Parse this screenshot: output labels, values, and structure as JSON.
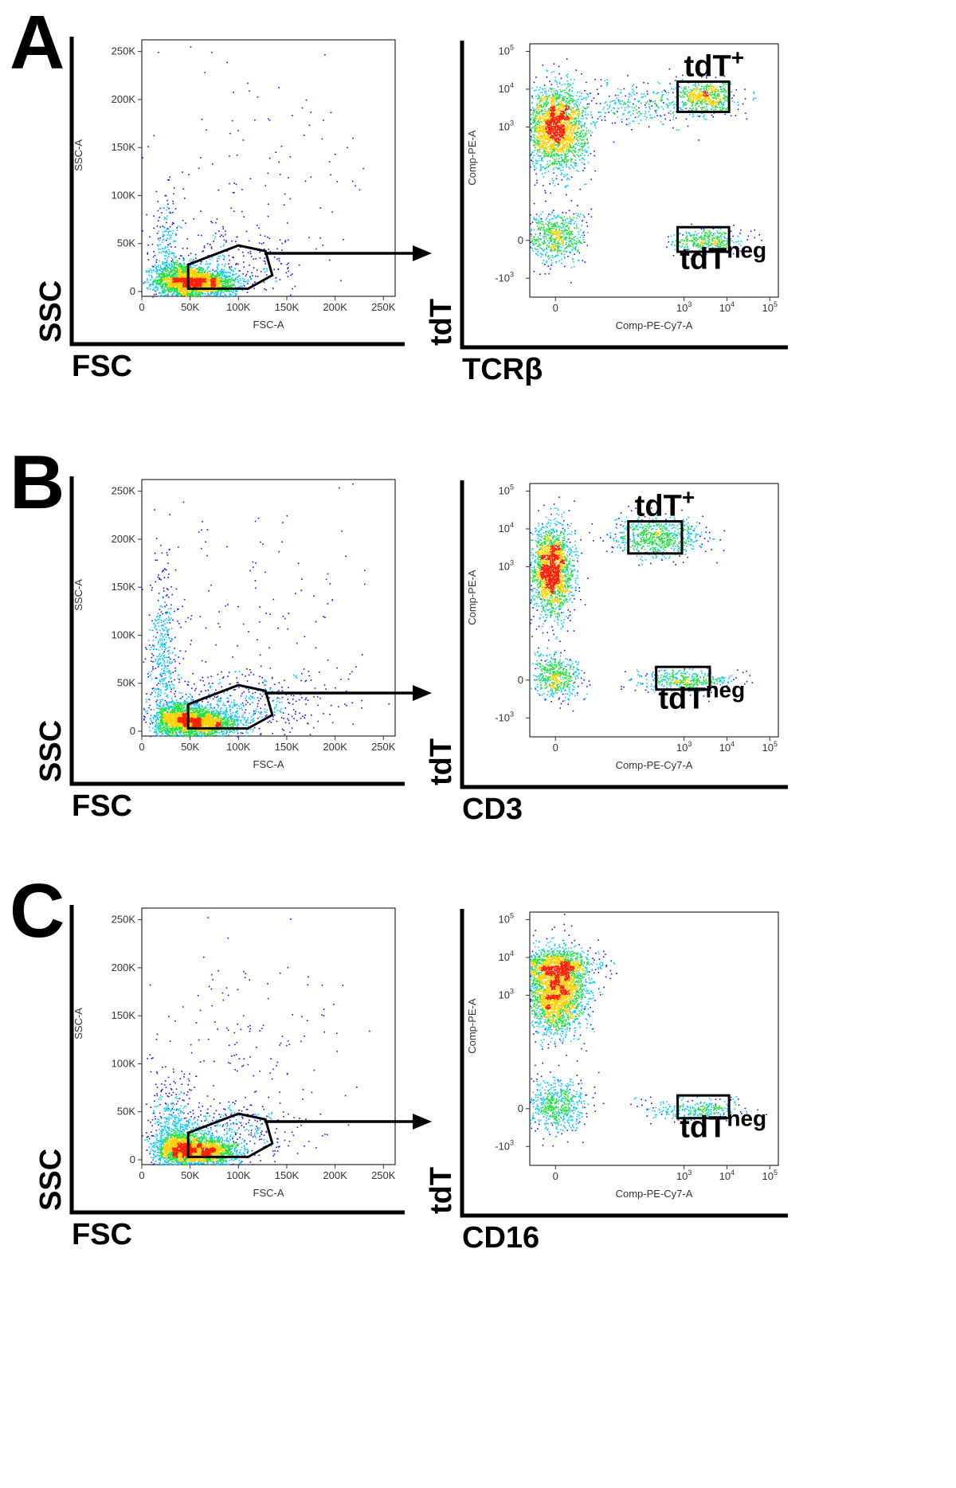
{
  "chart_data": [
    {
      "panel": "A",
      "type": "scatter",
      "plots": [
        {
          "id": "scatter",
          "xlabel": "FSC-A",
          "ylabel": "SSC-A",
          "outer_xlabel": "FSC",
          "outer_ylabel": "SSC",
          "xlim": [
            0,
            262144
          ],
          "ylim": [
            -5000,
            262144
          ],
          "xticks": [
            {
              "v": 0,
              "label": "0"
            },
            {
              "v": 50000,
              "label": "50K"
            },
            {
              "v": 100000,
              "label": "100K"
            },
            {
              "v": 150000,
              "label": "150K"
            },
            {
              "v": 200000,
              "label": "200K"
            },
            {
              "v": 250000,
              "label": "250K"
            }
          ],
          "yticks": [
            {
              "v": 0,
              "label": "0"
            },
            {
              "v": 50000,
              "label": "50K"
            },
            {
              "v": 100000,
              "label": "100K"
            },
            {
              "v": 150000,
              "label": "150K"
            },
            {
              "v": 200000,
              "label": "200K"
            },
            {
              "v": 250000,
              "label": "250K"
            }
          ],
          "clusters": [
            {
              "cx": 40000,
              "cy": 12000,
              "sx": 14000,
              "sy": 9000,
              "n": 1400
            },
            {
              "cx": 68000,
              "cy": 9000,
              "sx": 16000,
              "sy": 7000,
              "n": 1200
            },
            {
              "cx": 25000,
              "cy": 40000,
              "sx": 9000,
              "sy": 30000,
              "n": 250
            },
            {
              "cx": 90000,
              "cy": 25000,
              "sx": 40000,
              "sy": 18000,
              "n": 250
            },
            {
              "cx": 110000,
              "cy": 110000,
              "sx": 70000,
              "sy": 70000,
              "n": 140
            }
          ],
          "gate": [
            [
              48000,
              3000
            ],
            [
              48000,
              28000
            ],
            [
              100000,
              48000
            ],
            [
              128000,
              42000
            ],
            [
              135000,
              17000
            ],
            [
              110000,
              3000
            ]
          ]
        },
        {
          "id": "fluor",
          "xlabel": "Comp-PE-Cy7-A",
          "ylabel": "Comp-PE-A",
          "outer_xlabel": "TCRβ",
          "outer_ylabel": "tdT",
          "xlim": [
            -0.6,
            5.2
          ],
          "ylim": [
            -1.5,
            5.2
          ],
          "xticks": [
            {
              "v": 0,
              "label": "0",
              "exp": ""
            },
            {
              "v": 3,
              "label": "10",
              "exp": "3"
            },
            {
              "v": 4,
              "label": "10",
              "exp": "4"
            },
            {
              "v": 5,
              "label": "10",
              "exp": "5"
            }
          ],
          "yticks": [
            {
              "v": -1,
              "label": "-10",
              "exp": "3"
            },
            {
              "v": 0,
              "label": "0",
              "exp": ""
            },
            {
              "v": 3,
              "label": "10",
              "exp": "3"
            },
            {
              "v": 4,
              "label": "10",
              "exp": "4"
            },
            {
              "v": 5,
              "label": "10",
              "exp": "5"
            }
          ],
          "clusters": [
            {
              "cx": 0.0,
              "cy": 3.0,
              "sx": 0.35,
              "sy": 0.55,
              "n": 2200
            },
            {
              "cx": 0.0,
              "cy": 0.1,
              "sx": 0.35,
              "sy": 0.35,
              "n": 600
            },
            {
              "cx": 3.5,
              "cy": 3.8,
              "sx": 0.35,
              "sy": 0.2,
              "n": 550
            },
            {
              "cx": 3.5,
              "cy": 0.0,
              "sx": 0.4,
              "sy": 0.15,
              "n": 350
            },
            {
              "cx": 2.0,
              "cy": 3.6,
              "sx": 0.7,
              "sy": 0.3,
              "n": 300
            }
          ],
          "gates": [
            {
              "name": "tdT+",
              "x0": 2.85,
              "x1": 4.05,
              "y0": 3.4,
              "y1": 4.2
            },
            {
              "name": "tdTneg",
              "x0": 2.85,
              "x1": 4.05,
              "y0": -0.3,
              "y1": 0.35
            }
          ],
          "pop_labels": [
            {
              "text": "tdT",
              "sup": "+",
              "x": 3.0,
              "y": 4.35
            },
            {
              "text": "tdT",
              "sup": "neg",
              "x": 2.9,
              "y": -0.75
            }
          ]
        }
      ]
    },
    {
      "panel": "B",
      "type": "scatter",
      "plots": [
        {
          "id": "scatter",
          "xlabel": "FSC-A",
          "ylabel": "SSC-A",
          "outer_xlabel": "FSC",
          "outer_ylabel": "SSC",
          "xlim": [
            0,
            262144
          ],
          "ylim": [
            -5000,
            262144
          ],
          "xticks": [
            {
              "v": 0,
              "label": "0"
            },
            {
              "v": 50000,
              "label": "50K"
            },
            {
              "v": 100000,
              "label": "100K"
            },
            {
              "v": 150000,
              "label": "150K"
            },
            {
              "v": 200000,
              "label": "200K"
            },
            {
              "v": 250000,
              "label": "250K"
            }
          ],
          "yticks": [
            {
              "v": 0,
              "label": "0"
            },
            {
              "v": 50000,
              "label": "50K"
            },
            {
              "v": 100000,
              "label": "100K"
            },
            {
              "v": 150000,
              "label": "150K"
            },
            {
              "v": 200000,
              "label": "200K"
            },
            {
              "v": 250000,
              "label": "250K"
            }
          ],
          "clusters": [
            {
              "cx": 40000,
              "cy": 12000,
              "sx": 14000,
              "sy": 9000,
              "n": 1400
            },
            {
              "cx": 68000,
              "cy": 9000,
              "sx": 16000,
              "sy": 7000,
              "n": 1200
            },
            {
              "cx": 22000,
              "cy": 70000,
              "sx": 7000,
              "sy": 55000,
              "n": 500
            },
            {
              "cx": 100000,
              "cy": 30000,
              "sx": 50000,
              "sy": 16000,
              "n": 500
            },
            {
              "cx": 110000,
              "cy": 110000,
              "sx": 70000,
              "sy": 70000,
              "n": 150
            }
          ],
          "gate": [
            [
              48000,
              3000
            ],
            [
              48000,
              28000
            ],
            [
              100000,
              48000
            ],
            [
              128000,
              42000
            ],
            [
              135000,
              17000
            ],
            [
              110000,
              3000
            ]
          ]
        },
        {
          "id": "fluor",
          "xlabel": "Comp-PE-Cy7-A",
          "ylabel": "Comp-PE-A",
          "outer_xlabel": "CD3",
          "outer_ylabel": "tdT",
          "xlim": [
            -0.6,
            5.2
          ],
          "ylim": [
            -1.5,
            5.2
          ],
          "xticks": [
            {
              "v": 0,
              "label": "0",
              "exp": ""
            },
            {
              "v": 3,
              "label": "10",
              "exp": "3"
            },
            {
              "v": 4,
              "label": "10",
              "exp": "4"
            },
            {
              "v": 5,
              "label": "10",
              "exp": "5"
            }
          ],
          "yticks": [
            {
              "v": -1,
              "label": "-10",
              "exp": "3"
            },
            {
              "v": 0,
              "label": "0",
              "exp": ""
            },
            {
              "v": 3,
              "label": "10",
              "exp": "3"
            },
            {
              "v": 4,
              "label": "10",
              "exp": "4"
            },
            {
              "v": 5,
              "label": "10",
              "exp": "5"
            }
          ],
          "clusters": [
            {
              "cx": -0.1,
              "cy": 2.9,
              "sx": 0.25,
              "sy": 0.6,
              "n": 2000
            },
            {
              "cx": 0.0,
              "cy": 0.1,
              "sx": 0.3,
              "sy": 0.3,
              "n": 500
            },
            {
              "cx": 2.4,
              "cy": 3.8,
              "sx": 0.55,
              "sy": 0.25,
              "n": 700
            },
            {
              "cx": 3.0,
              "cy": 0.0,
              "sx": 0.55,
              "sy": 0.15,
              "n": 400
            }
          ],
          "gates": [
            {
              "name": "tdT+",
              "x0": 1.7,
              "x1": 2.95,
              "y0": 3.35,
              "y1": 4.2
            },
            {
              "name": "tdTneg",
              "x0": 2.35,
              "x1": 3.6,
              "y0": -0.25,
              "y1": 0.35
            }
          ],
          "pop_labels": [
            {
              "text": "tdT",
              "sup": "+",
              "x": 1.85,
              "y": 4.35
            },
            {
              "text": "tdT",
              "sup": "neg",
              "x": 2.4,
              "y": -0.75
            }
          ]
        }
      ]
    },
    {
      "panel": "C",
      "type": "scatter",
      "plots": [
        {
          "id": "scatter",
          "xlabel": "FSC-A",
          "ylabel": "SSC-A",
          "outer_xlabel": "FSC",
          "outer_ylabel": "SSC",
          "xlim": [
            0,
            262144
          ],
          "ylim": [
            -5000,
            262144
          ],
          "xticks": [
            {
              "v": 0,
              "label": "0"
            },
            {
              "v": 50000,
              "label": "50K"
            },
            {
              "v": 100000,
              "label": "100K"
            },
            {
              "v": 150000,
              "label": "150K"
            },
            {
              "v": 200000,
              "label": "200K"
            },
            {
              "v": 250000,
              "label": "250K"
            }
          ],
          "yticks": [
            {
              "v": 0,
              "label": "0"
            },
            {
              "v": 50000,
              "label": "50K"
            },
            {
              "v": 100000,
              "label": "100K"
            },
            {
              "v": 150000,
              "label": "150K"
            },
            {
              "v": 200000,
              "label": "200K"
            },
            {
              "v": 250000,
              "label": "250K"
            }
          ],
          "clusters": [
            {
              "cx": 40000,
              "cy": 12000,
              "sx": 14000,
              "sy": 9000,
              "n": 1400
            },
            {
              "cx": 68000,
              "cy": 9000,
              "sx": 16000,
              "sy": 7000,
              "n": 1200
            },
            {
              "cx": 30000,
              "cy": 40000,
              "sx": 12000,
              "sy": 25000,
              "n": 350
            },
            {
              "cx": 90000,
              "cy": 30000,
              "sx": 35000,
              "sy": 15000,
              "n": 350
            },
            {
              "cx": 100000,
              "cy": 100000,
              "sx": 55000,
              "sy": 60000,
              "n": 180
            }
          ],
          "gate": [
            [
              48000,
              3000
            ],
            [
              48000,
              28000
            ],
            [
              100000,
              48000
            ],
            [
              128000,
              42000
            ],
            [
              135000,
              17000
            ],
            [
              110000,
              3000
            ]
          ]
        },
        {
          "id": "fluor",
          "xlabel": "Comp-PE-Cy7-A",
          "ylabel": "Comp-PE-A",
          "outer_xlabel": "CD16",
          "outer_ylabel": "tdT",
          "xlim": [
            -0.6,
            5.2
          ],
          "ylim": [
            -1.5,
            5.2
          ],
          "xticks": [
            {
              "v": 0,
              "label": "0",
              "exp": ""
            },
            {
              "v": 3,
              "label": "10",
              "exp": "3"
            },
            {
              "v": 4,
              "label": "10",
              "exp": "4"
            },
            {
              "v": 5,
              "label": "10",
              "exp": "5"
            }
          ],
          "yticks": [
            {
              "v": -1,
              "label": "-10",
              "exp": "3"
            },
            {
              "v": 0,
              "label": "0",
              "exp": ""
            },
            {
              "v": 3,
              "label": "10",
              "exp": "3"
            },
            {
              "v": 4,
              "label": "10",
              "exp": "4"
            },
            {
              "v": 5,
              "label": "10",
              "exp": "5"
            }
          ],
          "clusters": [
            {
              "cx": 0.0,
              "cy": 3.1,
              "sx": 0.35,
              "sy": 0.55,
              "n": 2400
            },
            {
              "cx": 0.0,
              "cy": 3.8,
              "sx": 0.5,
              "sy": 0.2,
              "n": 700
            },
            {
              "cx": 0.0,
              "cy": 0.1,
              "sx": 0.35,
              "sy": 0.35,
              "n": 600
            },
            {
              "cx": 3.3,
              "cy": 0.0,
              "sx": 0.55,
              "sy": 0.15,
              "n": 300
            }
          ],
          "gates": [
            {
              "name": "tdTneg",
              "x0": 2.85,
              "x1": 4.05,
              "y0": -0.25,
              "y1": 0.35
            }
          ],
          "pop_labels": [
            {
              "text": "tdT",
              "sup": "neg",
              "x": 2.9,
              "y": -0.75
            }
          ]
        }
      ]
    }
  ],
  "colors": {
    "density_low": "#1010ff",
    "density_mid1": "#00c8ff",
    "density_mid2": "#20e040",
    "density_high1": "#ffd000",
    "density_high2": "#ff2000",
    "gate": "#000000",
    "axis": "#000000"
  }
}
